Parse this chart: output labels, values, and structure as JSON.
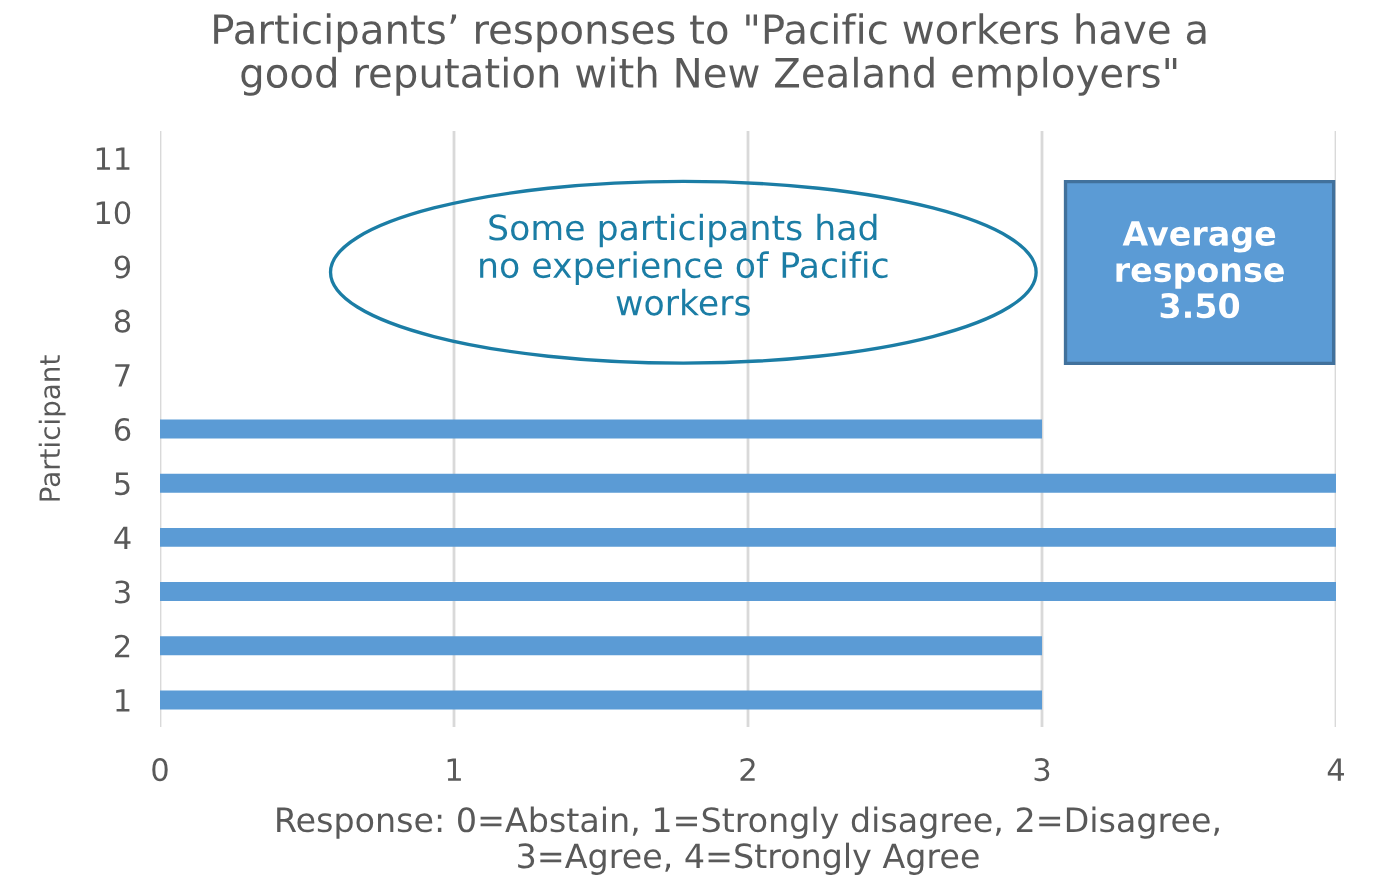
{
  "chart_data": {
    "type": "bar",
    "orientation": "horizontal",
    "title": "Participants’ responses to \"Pacific workers have a\ngood reputation with New Zealand employers\"",
    "xlabel": "Response: 0=Abstain, 1=Strongly disagree, 2=Disagree,\n3=Agree, 4=Strongly Agree",
    "ylabel": "Participant",
    "categories": [
      "11",
      "10",
      "9",
      "8",
      "7",
      "6",
      "5",
      "4",
      "3",
      "2",
      "1"
    ],
    "values": [
      null,
      null,
      null,
      null,
      null,
      3,
      4,
      4,
      4,
      3,
      3
    ],
    "color": "#5b9bd5",
    "xlim": [
      0,
      4
    ],
    "xticks": [
      0,
      1,
      2,
      3,
      4
    ],
    "grid": "x",
    "annotations": [
      "Some participants had\nno experience of Pacific\nworkers",
      "Average\nresponse\n3.50"
    ]
  }
}
